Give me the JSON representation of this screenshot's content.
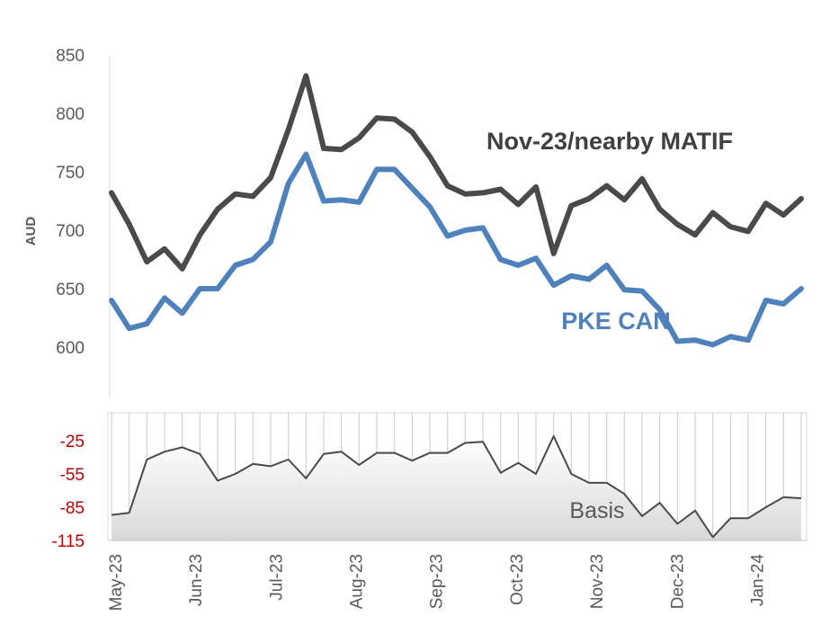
{
  "chart_data": [
    {
      "type": "line",
      "ylabel": "AUD",
      "ylim": [
        550,
        850
      ],
      "yticks": [
        "850",
        "800",
        "750",
        "700",
        "650",
        "600",
        "550"
      ],
      "grid": false,
      "series": [
        {
          "name": "Nov-23/nearby MATIF",
          "color": "#4a4a4a",
          "values": [
            732,
            705,
            673,
            684,
            667,
            696,
            718,
            731,
            729,
            745,
            786,
            832,
            770,
            769,
            779,
            796,
            795,
            784,
            763,
            738,
            731,
            732,
            735,
            722,
            737,
            680,
            721,
            727,
            738,
            726,
            744,
            718,
            705,
            696,
            715,
            703,
            699,
            723,
            713,
            727
          ]
        },
        {
          "name": "PKE CAN",
          "color": "#4f81bd",
          "values": [
            640,
            616,
            620,
            642,
            629,
            650,
            650,
            670,
            675,
            690,
            740,
            765,
            725,
            726,
            724,
            752,
            752,
            736,
            720,
            695,
            700,
            702,
            675,
            670,
            676,
            653,
            661,
            658,
            670,
            649,
            648,
            632,
            605,
            606,
            602,
            609,
            606,
            640,
            637,
            650
          ]
        }
      ]
    },
    {
      "type": "area",
      "ylim": [
        -115,
        -5
      ],
      "yticks": [
        "-25",
        "-55",
        "-85",
        "-115"
      ],
      "tick_color": "#c00000",
      "series": [
        {
          "name": "Basis",
          "color": "#4a4a4a",
          "values": [
            -92,
            -90,
            -42,
            -35,
            -31,
            -37,
            -61,
            -55,
            -46,
            -48,
            -42,
            -59,
            -37,
            -35,
            -47,
            -36,
            -36,
            -43,
            -36,
            -36,
            -27,
            -26,
            -54,
            -45,
            -55,
            -21,
            -55,
            -63,
            -63,
            -73,
            -93,
            -81,
            -100,
            -88,
            -112,
            -95,
            -95,
            -85,
            -76,
            -77
          ]
        }
      ]
    }
  ],
  "x_labels": [
    "May-23",
    "Jun-23",
    "Jul-23",
    "Aug-23",
    "Sep-23",
    "Oct-23",
    "Nov-23",
    "Dec-23",
    "Jan-24"
  ]
}
